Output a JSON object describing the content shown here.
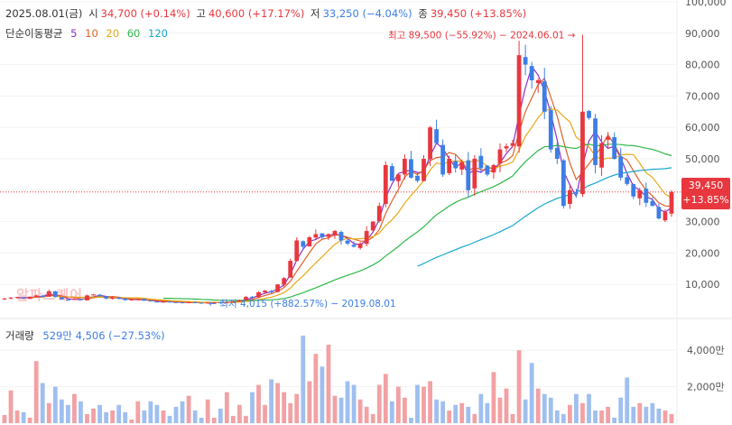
{
  "header": {
    "date": "2025.08.01(금)",
    "open_label": "시",
    "open_value": "34,700 (+0.14%)",
    "high_label": "고",
    "high_value": "40,600 (+17.17%)",
    "low_label": "저",
    "low_value": "33,250 (−4.04%)",
    "close_label": "종",
    "close_value": "39,450 (+13.85%)"
  },
  "moving_average": {
    "label": "단순이동평균",
    "periods": [
      "5",
      "10",
      "20",
      "60",
      "120"
    ],
    "colors": [
      "#8e2fc9",
      "#e0612a",
      "#e8a817",
      "#2fb84b",
      "#17a7cf"
    ]
  },
  "price_tag": {
    "price": "39,450",
    "change": "+13.85%"
  },
  "watermark": "알파스퀘어",
  "volume": {
    "label": "거래량",
    "value": "529만 4,506 (−27.53%)"
  },
  "colors": {
    "up": "#e8373e",
    "down": "#3d7ee6",
    "vol_up": "#f2a1a4",
    "vol_down": "#9fbff0"
  },
  "chart_data": [
    {
      "type": "candlestick",
      "title": "",
      "y_axis_ticks": [
        "100,000",
        "90,000",
        "80,000",
        "70,000",
        "60,000",
        "50,000",
        "40,000",
        "30,000",
        "20,000",
        "10,000"
      ],
      "y_axis_values": [
        100000,
        90000,
        80000,
        70000,
        60000,
        50000,
        40000,
        30000,
        20000,
        10000
      ],
      "ylim": [
        0,
        100000
      ],
      "current_price": 39450,
      "annotations": {
        "high": {
          "text": "최고 89,500 (−55.92%) − 2024.06.01",
          "value": 89500
        },
        "low": {
          "text": "최저 4,015 (+882.57%) − 2019.08.01",
          "value": 4015
        }
      },
      "closes": [
        5500,
        5800,
        6000,
        5400,
        6100,
        6500,
        6000,
        7800,
        6000,
        5200,
        5100,
        5400,
        5000,
        6500,
        6800,
        6200,
        5500,
        5800,
        5500,
        5000,
        5200,
        5300,
        4800,
        4600,
        4500,
        4500,
        4400,
        4300,
        4200,
        4300,
        4200,
        4100,
        4200,
        4300,
        4200,
        4400,
        4600,
        5000,
        6000,
        6000,
        7500,
        8000,
        7500,
        10000,
        12000,
        17500,
        24000,
        22000,
        25000,
        26000,
        25000,
        26000,
        27000,
        24000,
        23000,
        22000,
        23000,
        27000,
        30000,
        35000,
        48000,
        43000,
        45000,
        50000,
        44000,
        43000,
        50000,
        60000,
        55000,
        45000,
        50000,
        47000,
        49000,
        40000,
        50000,
        47000,
        45000,
        48000,
        53000,
        54000,
        55000,
        83000,
        80000,
        75000,
        75000,
        65000,
        53000,
        50000,
        35000,
        40000,
        39000,
        65000,
        63000,
        48000,
        55000,
        57000,
        50000,
        44000,
        42000,
        38000,
        40000,
        36000,
        35000,
        31000,
        33000,
        39450
      ],
      "y_axis_volume_ticks": [
        "4,000만",
        "2,000만"
      ],
      "y_axis_volume_values": [
        40000000,
        20000000
      ],
      "volume_values": [
        4.5,
        18,
        7,
        6,
        3,
        34,
        22,
        11,
        20,
        13,
        10,
        16,
        12,
        5,
        8,
        10,
        6,
        7,
        10,
        6,
        2,
        12,
        7,
        12,
        10,
        7,
        4,
        9,
        12,
        15,
        7,
        3,
        13,
        3,
        8,
        17,
        4,
        10,
        4,
        17,
        21,
        10,
        24,
        22,
        17,
        11,
        16,
        48,
        23,
        38,
        31,
        43,
        15,
        14,
        23,
        21,
        13,
        9,
        5,
        21,
        27,
        12,
        20,
        14,
        3,
        21,
        20,
        23,
        13,
        12,
        7,
        10,
        11,
        9,
        5,
        16,
        11,
        28,
        14,
        19,
        5,
        40,
        13,
        33,
        19,
        16,
        14,
        7,
        5,
        10,
        16,
        11,
        16,
        7,
        7,
        9,
        3,
        14,
        25,
        9,
        11,
        9,
        11,
        8,
        7,
        5
      ],
      "volume_unit": "백만"
    }
  ]
}
